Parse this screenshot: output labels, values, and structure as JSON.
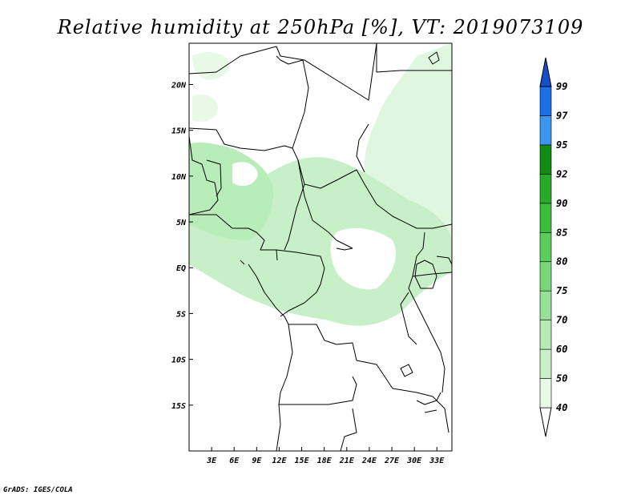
{
  "title": "Relative humidity at 250hPa [%], VT: 2019073109",
  "credit": "GrADS: IGES/COLA",
  "map": {
    "lon_range": [
      0,
      35
    ],
    "lat_range": [
      -20,
      24.5
    ],
    "x_ticks": [
      "3E",
      "6E",
      "9E",
      "12E",
      "15E",
      "18E",
      "21E",
      "24E",
      "27E",
      "30E",
      "33E"
    ],
    "y_ticks": [
      "20N",
      "15N",
      "10N",
      "5N",
      "EQ",
      "5S",
      "10S",
      "15S"
    ]
  },
  "colorbar": {
    "levels": [
      "40",
      "50",
      "60",
      "70",
      "75",
      "80",
      "85",
      "90",
      "92",
      "95",
      "97",
      "99"
    ],
    "colors": [
      "#ffffff",
      "#e6fae6",
      "#c8f0c8",
      "#b4ebb4",
      "#96e196",
      "#78d778",
      "#5acd5a",
      "#3cbe3c",
      "#28aa28",
      "#148c14",
      "#3c96f0",
      "#1e6ee6",
      "#1450c8"
    ]
  },
  "fields": [
    {
      "name": "humidity-patch-upper-right",
      "color": "#dff7df"
    },
    {
      "name": "humidity-patch-center-band",
      "color": "#c8f0c8"
    },
    {
      "name": "humidity-patch-west",
      "color": "#b8ecb8"
    }
  ]
}
